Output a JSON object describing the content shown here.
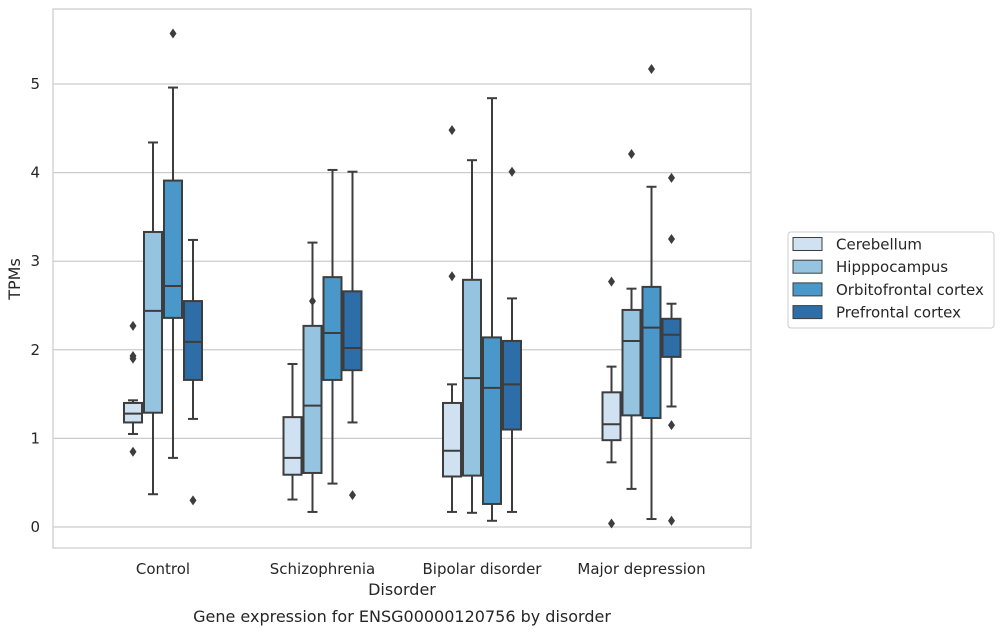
{
  "chart_data": {
    "type": "box",
    "title": "",
    "caption": "Gene expression for ENSG00000120756 by disorder",
    "xlabel": "Disorder",
    "ylabel": "TPMs",
    "ylim": [
      -0.25,
      5.85
    ],
    "yticks": [
      0,
      1,
      2,
      3,
      4,
      5
    ],
    "grid": "horizontal",
    "legend_position": "right",
    "categories": [
      "Control",
      "Schizophrenia",
      "Bipolar disorder",
      "Major depression"
    ],
    "series": [
      {
        "name": "Cerebellum",
        "color": "#d0e1f2",
        "boxes": [
          {
            "whisker_low": 1.05,
            "q1": 1.18,
            "median": 1.28,
            "q3": 1.4,
            "whisker_high": 1.43,
            "outliers": [
              0.85,
              1.9,
              1.93,
              2.27
            ]
          },
          {
            "whisker_low": 0.31,
            "q1": 0.59,
            "median": 0.78,
            "q3": 1.24,
            "whisker_high": 1.84,
            "outliers": []
          },
          {
            "whisker_low": 0.17,
            "q1": 0.57,
            "median": 0.86,
            "q3": 1.4,
            "whisker_high": 1.61,
            "outliers": [
              2.83,
              4.48
            ]
          },
          {
            "whisker_low": 0.73,
            "q1": 0.98,
            "median": 1.16,
            "q3": 1.52,
            "whisker_high": 1.81,
            "outliers": [
              0.04,
              2.77
            ]
          }
        ]
      },
      {
        "name": "Hipppocampus",
        "color": "#94c4df",
        "boxes": [
          {
            "whisker_low": 0.37,
            "q1": 1.29,
            "median": 2.44,
            "q3": 3.33,
            "whisker_high": 4.34,
            "outliers": []
          },
          {
            "whisker_low": 0.17,
            "q1": 0.61,
            "median": 1.37,
            "q3": 2.27,
            "whisker_high": 3.21,
            "outliers": [
              2.55
            ]
          },
          {
            "whisker_low": 0.16,
            "q1": 0.58,
            "median": 1.68,
            "q3": 2.79,
            "whisker_high": 4.14,
            "outliers": []
          },
          {
            "whisker_low": 0.43,
            "q1": 1.26,
            "median": 2.1,
            "q3": 2.45,
            "whisker_high": 2.69,
            "outliers": [
              4.21
            ]
          }
        ]
      },
      {
        "name": "Orbitofrontal cortex",
        "color": "#4a98c9",
        "boxes": [
          {
            "whisker_low": 0.78,
            "q1": 2.36,
            "median": 2.72,
            "q3": 3.91,
            "whisker_high": 4.96,
            "outliers": [
              5.57
            ]
          },
          {
            "whisker_low": 0.49,
            "q1": 1.66,
            "median": 2.19,
            "q3": 2.82,
            "whisker_high": 4.03,
            "outliers": []
          },
          {
            "whisker_low": 0.07,
            "q1": 0.26,
            "median": 1.57,
            "q3": 2.14,
            "whisker_high": 4.84,
            "outliers": []
          },
          {
            "whisker_low": 0.09,
            "q1": 1.23,
            "median": 2.25,
            "q3": 2.71,
            "whisker_high": 3.84,
            "outliers": [
              5.17
            ]
          }
        ]
      },
      {
        "name": "Prefrontal cortex",
        "color": "#2d6ea9",
        "boxes": [
          {
            "whisker_low": 1.22,
            "q1": 1.66,
            "median": 2.09,
            "q3": 2.55,
            "whisker_high": 3.24,
            "outliers": [
              0.3
            ]
          },
          {
            "whisker_low": 1.18,
            "q1": 1.77,
            "median": 2.02,
            "q3": 2.66,
            "whisker_high": 4.01,
            "outliers": [
              0.36
            ]
          },
          {
            "whisker_low": 0.17,
            "q1": 1.1,
            "median": 1.61,
            "q3": 2.1,
            "whisker_high": 2.58,
            "outliers": [
              4.01
            ]
          },
          {
            "whisker_low": 1.36,
            "q1": 1.92,
            "median": 2.17,
            "q3": 2.35,
            "whisker_high": 2.52,
            "outliers": [
              0.07,
              1.15,
              3.25,
              3.94
            ]
          }
        ]
      }
    ]
  }
}
